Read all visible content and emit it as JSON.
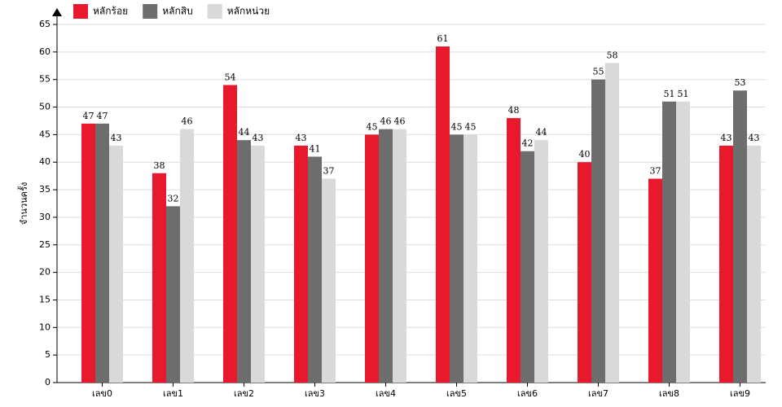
{
  "chart_data": {
    "type": "bar",
    "y_label": "จำนวนครั้ง",
    "categories": [
      "เลข0",
      "เลข1",
      "เลข2",
      "เลข3",
      "เลข4",
      "เลข5",
      "เลข6",
      "เลข7",
      "เลข8",
      "เลข9"
    ],
    "series": [
      {
        "name": "หลักร้อย",
        "color": "#e8192c",
        "values": [
          47,
          38,
          54,
          43,
          45,
          61,
          48,
          40,
          37,
          43
        ]
      },
      {
        "name": "หลักสิบ",
        "color": "#6d6d6d",
        "values": [
          47,
          32,
          44,
          41,
          46,
          45,
          42,
          55,
          51,
          53
        ]
      },
      {
        "name": "หลักหน่วย",
        "color": "#d9d9d9",
        "values": [
          43,
          46,
          43,
          37,
          46,
          45,
          44,
          58,
          51,
          43
        ]
      }
    ],
    "ylim": [
      0,
      65
    ],
    "yticks": [
      0,
      5,
      10,
      15,
      20,
      25,
      30,
      35,
      40,
      45,
      50,
      55,
      60,
      65
    ],
    "grid": true
  }
}
